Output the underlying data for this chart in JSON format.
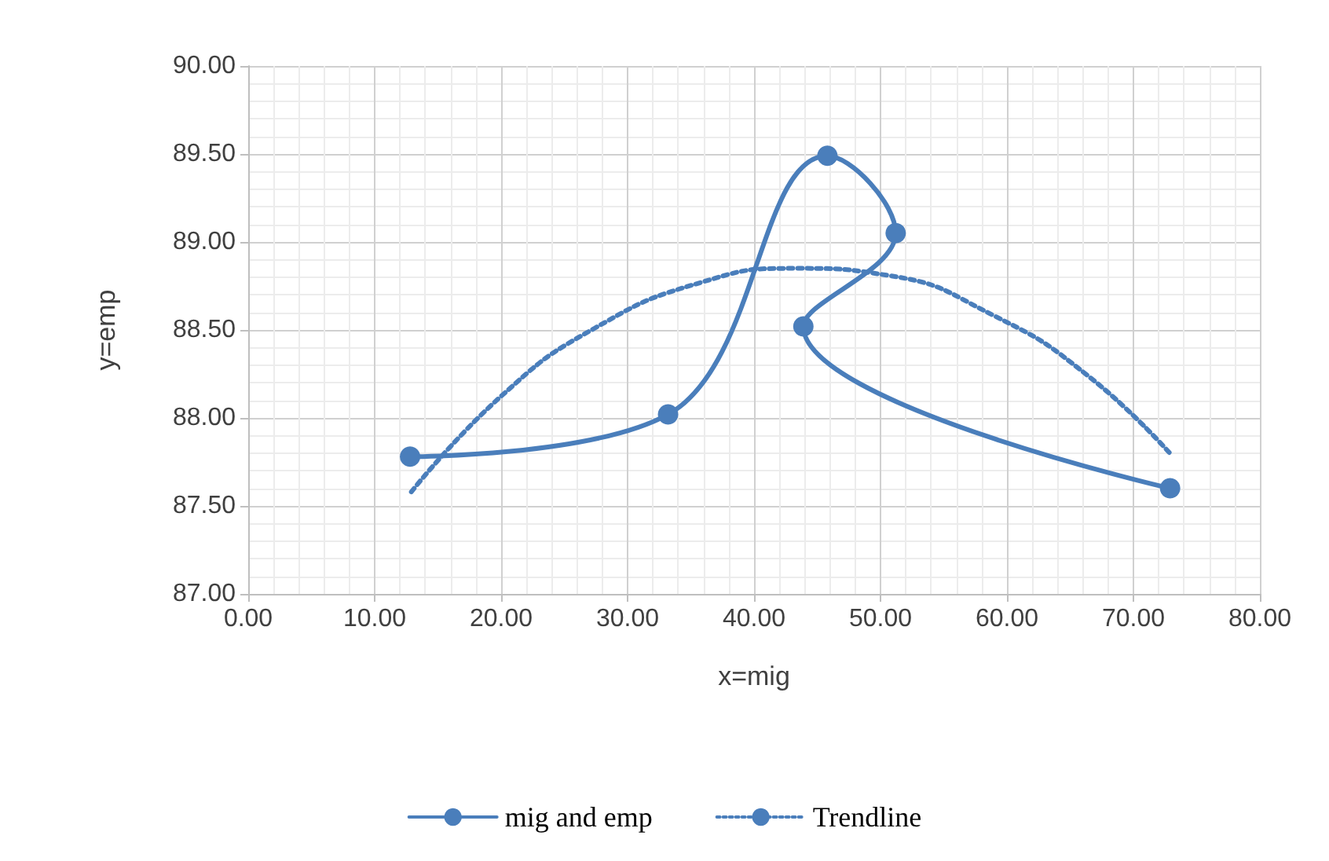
{
  "chart_data": {
    "type": "line",
    "xlabel": "x=mig",
    "ylabel": "y=emp",
    "xlim": [
      0,
      80
    ],
    "xticks": [
      {
        "value": 0,
        "label": "0.00"
      },
      {
        "value": 10,
        "label": "10.00"
      },
      {
        "value": 20,
        "label": "20.00"
      },
      {
        "value": 30,
        "label": "30.00"
      },
      {
        "value": 40,
        "label": "40.00"
      },
      {
        "value": 50,
        "label": "50.00"
      },
      {
        "value": 60,
        "label": "60.00"
      },
      {
        "value": 70,
        "label": "70.00"
      },
      {
        "value": 80,
        "label": "80.00"
      }
    ],
    "ylim": [
      87,
      90
    ],
    "yticks": [
      {
        "value": 87,
        "label": "87.00"
      },
      {
        "value": 87.5,
        "label": "87.50"
      },
      {
        "value": 88,
        "label": "88.00"
      },
      {
        "value": 88.5,
        "label": "88.50"
      },
      {
        "value": 89,
        "label": "89.00"
      },
      {
        "value": 89.5,
        "label": "89.50"
      },
      {
        "value": 90,
        "label": "90.00"
      }
    ],
    "grid": true,
    "legend": "bottom",
    "series": [
      {
        "name": "mig and emp",
        "color": "#4a7ebb",
        "marker": "circle",
        "line_style": "solid",
        "x": [
          12.8,
          33.2,
          45.8,
          51.2,
          43.9,
          72.9
        ],
        "values": [
          87.78,
          88.02,
          89.49,
          89.05,
          88.52,
          87.6
        ]
      },
      {
        "name": "Trendline",
        "color": "#4a7ebb",
        "marker": "none",
        "line_style": "dotted",
        "x": [
          12.9,
          20.1,
          27.4,
          35.8,
          43.2,
          50.6,
          59.0,
          66.4,
          73.0
        ],
        "values": [
          87.58,
          88.13,
          88.51,
          88.77,
          88.85,
          88.81,
          88.58,
          88.24,
          87.79
        ]
      }
    ]
  }
}
